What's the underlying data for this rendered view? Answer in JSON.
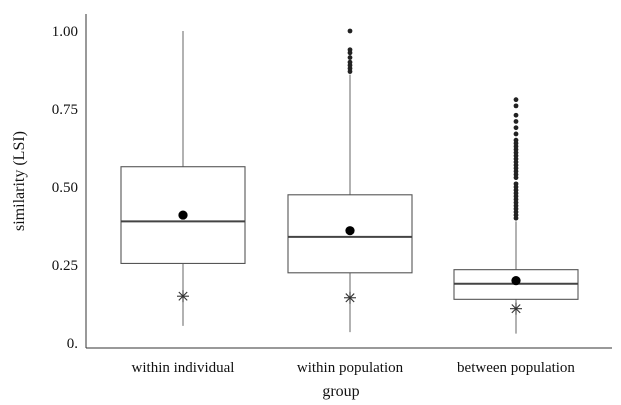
{
  "chart_data": {
    "type": "box",
    "xlabel": "group",
    "ylabel": "similarity (LSI)",
    "ylim": [
      0,
      1.05
    ],
    "yticks": [
      0,
      0.25,
      0.5,
      0.75,
      1.0
    ],
    "ytick_labels": [
      "0.",
      "0.25",
      "0.50",
      "0.75",
      "1.00"
    ],
    "grid": false,
    "categories": [
      "within individual",
      "within population",
      "between population"
    ],
    "boxes": [
      {
        "category": "within individual",
        "whisker_low": 0.055,
        "q1": 0.255,
        "median": 0.39,
        "q3": 0.565,
        "whisker_high": 1.0,
        "mean": 0.41,
        "star": 0.15,
        "outliers": []
      },
      {
        "category": "within population",
        "whisker_low": 0.035,
        "q1": 0.225,
        "median": 0.34,
        "q3": 0.475,
        "whisker_high": 0.86,
        "mean": 0.36,
        "star": 0.145,
        "outliers": [
          0.87,
          0.88,
          0.89,
          0.9,
          0.915,
          0.93,
          0.94,
          1.0
        ]
      },
      {
        "category": "between population",
        "whisker_low": 0.03,
        "q1": 0.14,
        "median": 0.19,
        "q3": 0.235,
        "whisker_high": 0.39,
        "mean": 0.2,
        "star": 0.11,
        "outliers": [
          0.4,
          0.41,
          0.42,
          0.43,
          0.44,
          0.45,
          0.46,
          0.47,
          0.48,
          0.49,
          0.5,
          0.51,
          0.53,
          0.54,
          0.55,
          0.56,
          0.57,
          0.58,
          0.59,
          0.6,
          0.61,
          0.62,
          0.63,
          0.64,
          0.65,
          0.67,
          0.69,
          0.71,
          0.73,
          0.76,
          0.78
        ]
      }
    ]
  }
}
